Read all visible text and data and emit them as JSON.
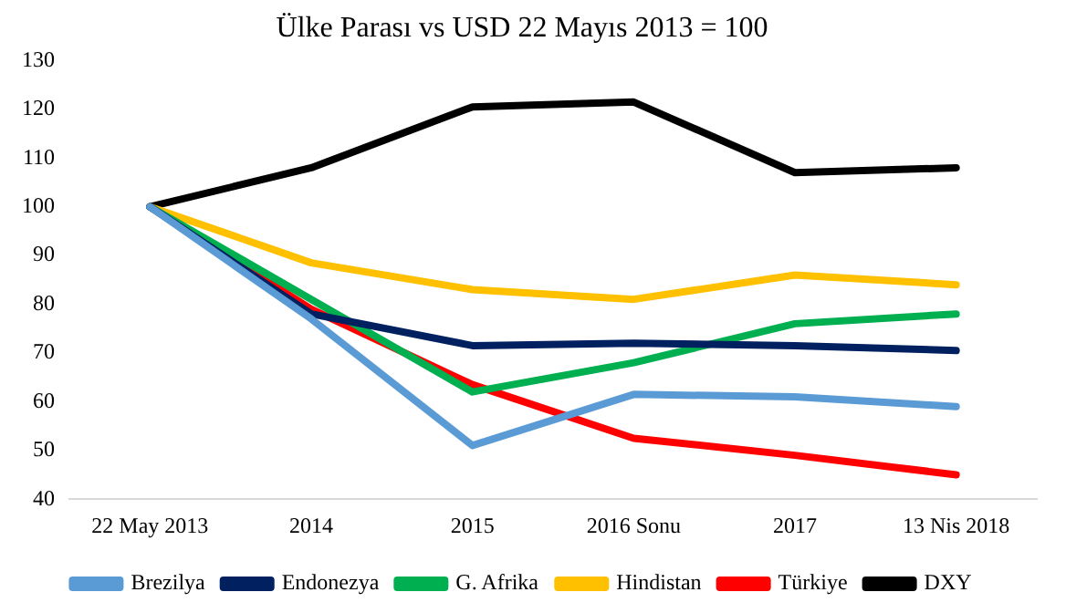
{
  "chart_data": {
    "type": "line",
    "title": "Ülke Parası vs USD 22 Mayıs 2013 = 100",
    "categories": [
      "22 May 2013",
      "2014",
      "2015",
      "2016 Sonu",
      "2017",
      "13 Nis 2018"
    ],
    "series": [
      {
        "name": "Brezilya",
        "color": "#5b9bd5",
        "values": [
          100,
          77,
          51,
          61.5,
          61,
          59
        ]
      },
      {
        "name": "Endonezya",
        "color": "#002060",
        "values": [
          100,
          78,
          71.5,
          72,
          71.5,
          70.5
        ]
      },
      {
        "name": "G. Afrika",
        "color": "#00b050",
        "values": [
          100,
          81,
          62,
          68,
          76,
          78
        ]
      },
      {
        "name": "Hindistan",
        "color": "#ffc000",
        "values": [
          100,
          88.5,
          83,
          81,
          86,
          84
        ]
      },
      {
        "name": "Türkiye",
        "color": "#ff0000",
        "values": [
          100,
          79,
          63.5,
          52.5,
          49,
          45
        ]
      },
      {
        "name": "DXY",
        "color": "#000000",
        "values": [
          100,
          108,
          120.5,
          121.5,
          107,
          108
        ]
      }
    ],
    "ylim": [
      40,
      130
    ],
    "yticks": [
      40,
      50,
      60,
      70,
      80,
      90,
      100,
      110,
      120,
      130
    ],
    "grid": false,
    "legend": "bottom",
    "marker": "none",
    "line_style": "solid"
  }
}
